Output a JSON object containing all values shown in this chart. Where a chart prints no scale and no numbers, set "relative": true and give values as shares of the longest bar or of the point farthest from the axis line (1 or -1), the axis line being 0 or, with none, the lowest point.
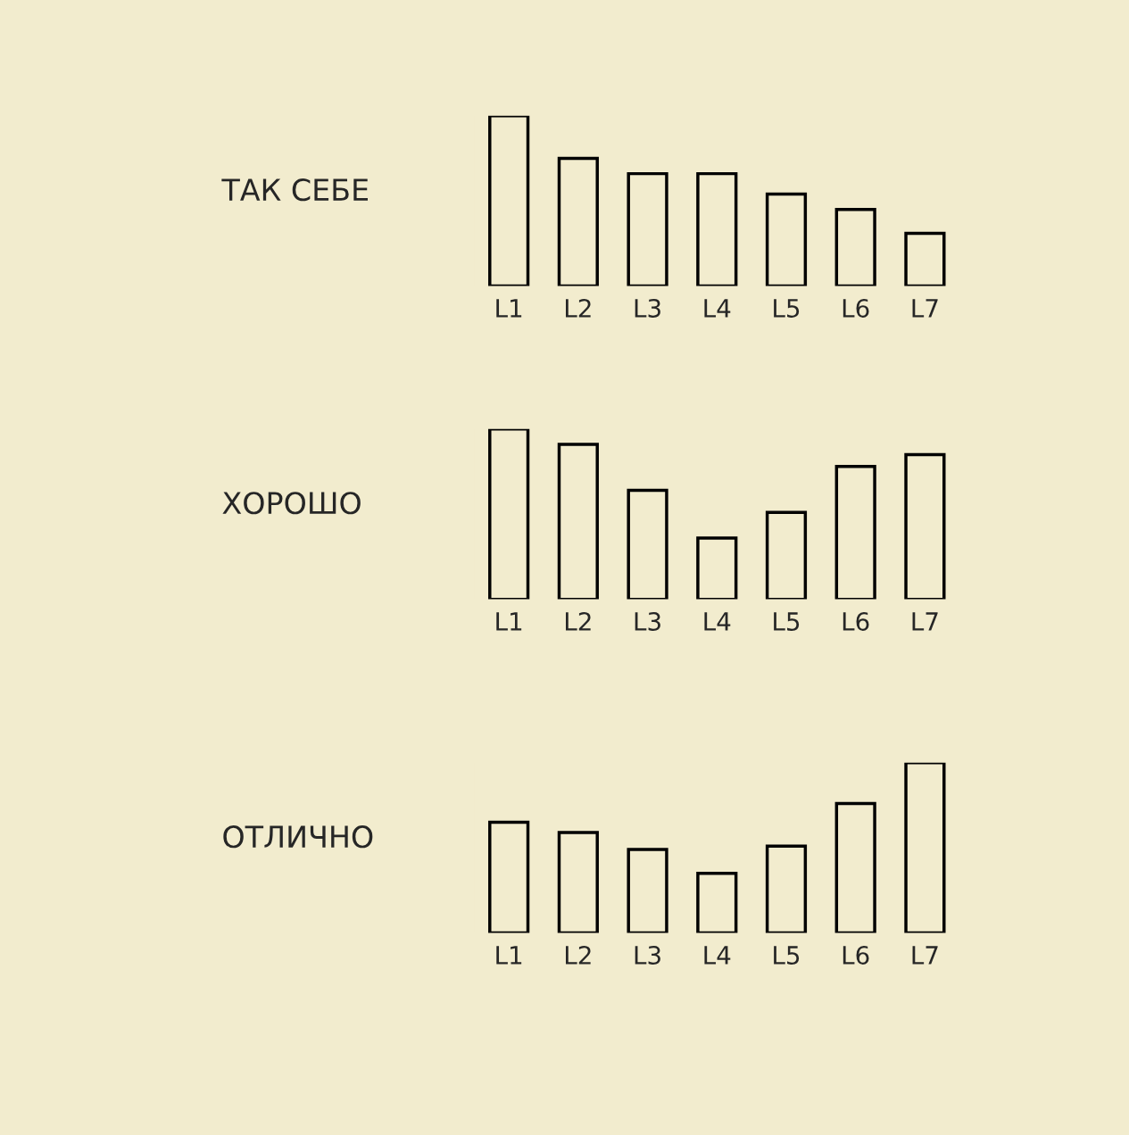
{
  "chart_data": [
    {
      "type": "bar",
      "title": "ТАК СЕБЕ",
      "relative": true,
      "categories": [
        "L1",
        "L2",
        "L3",
        "L4",
        "L5",
        "L6",
        "L7"
      ],
      "color": "#000000",
      "values": [
        1,
        0.75,
        0.66,
        0.66,
        0.54,
        0.45,
        0.31
      ]
    },
    {
      "type": "bar",
      "title": "ХОРОШО",
      "relative": true,
      "categories": [
        "L1",
        "L2",
        "L3",
        "L4",
        "L5",
        "L6",
        "L7"
      ],
      "color": "#000000",
      "values": [
        1,
        0.91,
        0.64,
        0.36,
        0.51,
        0.78,
        0.85
      ]
    },
    {
      "type": "bar",
      "title": "ОТЛИЧНО",
      "relative": true,
      "categories": [
        "L1",
        "L2",
        "L3",
        "L4",
        "L5",
        "L6",
        "L7"
      ],
      "color": "#000000",
      "values": [
        0.65,
        0.59,
        0.49,
        0.35,
        0.51,
        0.76,
        1
      ]
    }
  ]
}
